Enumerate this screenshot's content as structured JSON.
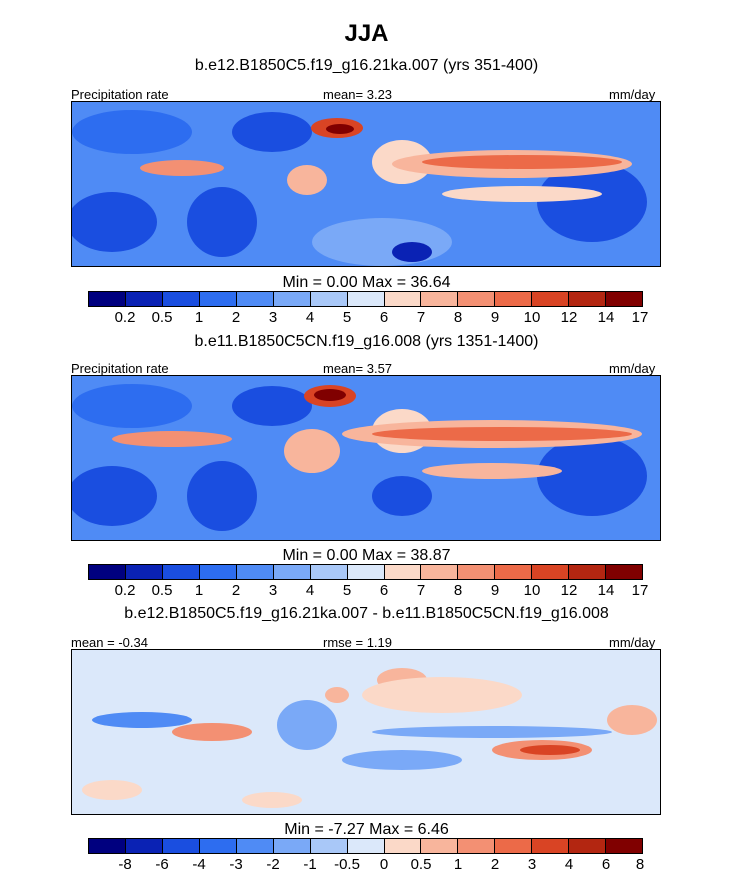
{
  "title": "JJA",
  "panels": [
    {
      "subtitle": "b.e12.B1850C5.f19_g16.21ka.007 (yrs 351-400)",
      "left_label": "Precipitation rate",
      "center_label": "mean=   3.23",
      "right_label": "mm/day",
      "stats": "Min =   0.00 Max =  36.64",
      "colorbar_labels": [
        "0.2",
        "0.5",
        "1",
        "2",
        "3",
        "4",
        "5",
        "6",
        "7",
        "8",
        "9",
        "10",
        "12",
        "14",
        "17"
      ]
    },
    {
      "subtitle": "b.e11.B1850C5CN.f19_g16.008 (yrs 1351-1400)",
      "left_label": "Precipitation rate",
      "center_label": "mean=   3.57",
      "right_label": "mm/day",
      "stats": "Min =   0.00 Max =  38.87",
      "colorbar_labels": [
        "0.2",
        "0.5",
        "1",
        "2",
        "3",
        "4",
        "5",
        "6",
        "7",
        "8",
        "9",
        "10",
        "12",
        "14",
        "17"
      ]
    },
    {
      "subtitle": "b.e12.B1850C5.f19_g16.21ka.007 - b.e11.B1850C5CN.f19_g16.008",
      "left_label": "mean =  -0.34",
      "center_label": "rmse =   1.19",
      "right_label": "mm/day",
      "stats": "Min =  -7.27 Max =   6.46",
      "colorbar_labels": [
        "-8",
        "-6",
        "-4",
        "-3",
        "-2",
        "-1",
        "-0.5",
        "0",
        "0.5",
        "1",
        "2",
        "3",
        "4",
        "6",
        "8"
      ]
    }
  ],
  "colors": {
    "palette": [
      "#00007f",
      "#0a22b4",
      "#1a4ee0",
      "#2d6df0",
      "#4f8bf5",
      "#7aa9f7",
      "#a9c8f8",
      "#dbe8fa",
      "#fbd9c8",
      "#f8b59c",
      "#f39073",
      "#ec6a48",
      "#d94424",
      "#b32611",
      "#800000"
    ]
  }
}
